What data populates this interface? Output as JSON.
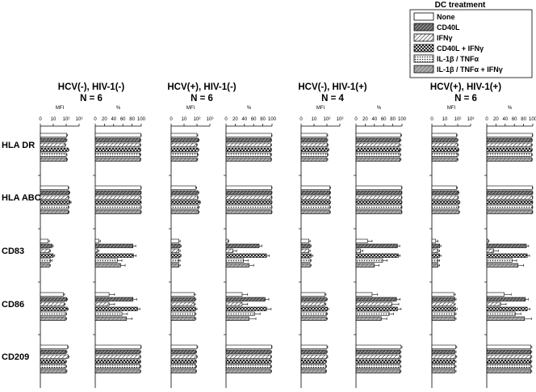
{
  "legend": {
    "title": "DC treatment",
    "entries": [
      {
        "label": "None",
        "pattern": "none"
      },
      {
        "label": "CD40L",
        "pattern": "dense-hatch"
      },
      {
        "label": "IFNγ",
        "pattern": "diag-hatch"
      },
      {
        "label": "CD40L + IFNγ",
        "pattern": "crosshatch"
      },
      {
        "label": "IL-1β / TNFα",
        "pattern": "dotted"
      },
      {
        "label": "IL-1β / TNFα + IFNγ",
        "pattern": "gray-hatch"
      }
    ]
  },
  "groups": [
    {
      "title": "HCV(-), HIV-1(-)",
      "n": "N = 6"
    },
    {
      "title": "HCV(+), HIV-1(-)",
      "n": "N = 6"
    },
    {
      "title": "HCV(-), HIV-1(+)",
      "n": "N = 4"
    },
    {
      "title": "HCV(+), HIV-1(+)",
      "n": "N = 6"
    }
  ],
  "markers": [
    "HLA DR",
    "HLA ABC",
    "CD83",
    "CD86",
    "CD209"
  ],
  "axes": {
    "mfi": {
      "label": "MFI",
      "ticks": [
        "0",
        "10",
        "10²",
        "10³"
      ],
      "scale": "log",
      "range": [
        1,
        1000
      ]
    },
    "pct": {
      "label": "%",
      "ticks": [
        "0",
        "20",
        "40",
        "60",
        "80",
        "100"
      ],
      "range": [
        0,
        100
      ]
    }
  },
  "chart_data": {
    "type": "bar",
    "orientation": "horizontal",
    "series": [
      "None",
      "CD40L",
      "IFNγ",
      "CD40L + IFNγ",
      "IL-1β / TNFα",
      "IL-1β / TNFα + IFNγ"
    ],
    "note_units": "MFI values in fluorescence units (log axis 1–1000); % values in percent (0–100). err = error bar length in same units.",
    "mfi": {
      "HLA DR": [
        [
          110,
          100,
          80,
          140,
          100,
          110
        ],
        [
          100,
          130,
          90,
          120,
          110,
          100
        ],
        [
          100,
          100,
          110,
          120,
          110,
          100
        ],
        [
          80,
          90,
          90,
          110,
          100,
          90
        ]
      ],
      "HLA ABC": [
        [
          140,
          170,
          150,
          200,
          140,
          150
        ],
        [
          80,
          120,
          110,
          160,
          130,
          130
        ],
        [
          170,
          170,
          160,
          170,
          160,
          160
        ],
        [
          80,
          110,
          100,
          130,
          110,
          120
        ]
      ],
      "CD83": [
        [
          4,
          8,
          5,
          10,
          6,
          5
        ],
        [
          4,
          5,
          4,
          5,
          4,
          4
        ],
        [
          4,
          5,
          4,
          6,
          5,
          5
        ],
        [
          2,
          4,
          3,
          4,
          3,
          3
        ]
      ],
      "CD86": [
        [
          60,
          110,
          70,
          120,
          90,
          90
        ],
        [
          60,
          70,
          60,
          80,
          70,
          70
        ],
        [
          70,
          90,
          70,
          110,
          90,
          90
        ],
        [
          50,
          60,
          50,
          70,
          60,
          60
        ]
      ],
      "CD209": [
        [
          130,
          100,
          140,
          90,
          90,
          100
        ],
        [
          100,
          80,
          90,
          80,
          80,
          80
        ],
        [
          100,
          90,
          100,
          80,
          80,
          80
        ],
        [
          70,
          60,
          70,
          60,
          60,
          60
        ]
      ]
    },
    "mfi_err": {
      "HLA DR": [
        [
          15,
          15,
          10,
          20,
          15,
          15
        ],
        [
          15,
          20,
          15,
          20,
          15,
          15
        ],
        [
          15,
          15,
          15,
          20,
          15,
          15
        ],
        [
          10,
          15,
          15,
          15,
          15,
          15
        ]
      ],
      "HLA ABC": [
        [
          20,
          25,
          20,
          40,
          20,
          20
        ],
        [
          15,
          20,
          15,
          25,
          20,
          20
        ],
        [
          25,
          25,
          25,
          25,
          25,
          25
        ],
        [
          15,
          20,
          15,
          20,
          20,
          20
        ]
      ],
      "CD83": [
        [
          1,
          2,
          1,
          3,
          2,
          1
        ],
        [
          1,
          1,
          1,
          1,
          1,
          1
        ],
        [
          1,
          1,
          1,
          2,
          1,
          1
        ],
        [
          1,
          1,
          1,
          1,
          1,
          1
        ]
      ],
      "CD86": [
        [
          15,
          20,
          15,
          25,
          20,
          20
        ],
        [
          15,
          15,
          15,
          20,
          15,
          15
        ],
        [
          15,
          20,
          15,
          25,
          20,
          20
        ],
        [
          15,
          15,
          15,
          20,
          15,
          15
        ]
      ],
      "CD209": [
        [
          20,
          15,
          25,
          15,
          15,
          15
        ],
        [
          15,
          15,
          15,
          15,
          15,
          15
        ],
        [
          15,
          15,
          15,
          15,
          15,
          15
        ],
        [
          15,
          15,
          15,
          15,
          15,
          15
        ]
      ]
    },
    "pct": {
      "HLA DR": [
        [
          99,
          98,
          97,
          98,
          97,
          98
        ],
        [
          99,
          98,
          97,
          98,
          97,
          98
        ],
        [
          97,
          96,
          94,
          96,
          95,
          96
        ],
        [
          99,
          98,
          97,
          98,
          97,
          98
        ]
      ],
      "HLA ABC": [
        [
          99,
          99,
          99,
          99,
          99,
          99
        ],
        [
          99,
          99,
          99,
          99,
          99,
          99
        ],
        [
          99,
          99,
          99,
          99,
          99,
          99
        ],
        [
          99,
          99,
          99,
          99,
          99,
          99
        ]
      ],
      "CD83": [
        [
          8,
          82,
          5,
          83,
          48,
          55
        ],
        [
          4,
          72,
          15,
          88,
          38,
          50
        ],
        [
          25,
          90,
          10,
          92,
          58,
          40
        ],
        [
          3,
          86,
          15,
          88,
          55,
          68
        ]
      ],
      "CD86": [
        [
          30,
          82,
          30,
          92,
          58,
          68
        ],
        [
          35,
          85,
          35,
          88,
          62,
          50
        ],
        [
          35,
          88,
          78,
          90,
          72,
          55
        ],
        [
          38,
          84,
          30,
          88,
          62,
          82
        ]
      ],
      "CD209": [
        [
          99,
          97,
          97,
          97,
          97,
          97
        ],
        [
          99,
          97,
          97,
          97,
          97,
          97
        ],
        [
          98,
          96,
          96,
          96,
          96,
          96
        ],
        [
          96,
          96,
          96,
          96,
          96,
          96
        ]
      ]
    },
    "pct_err": {
      "HLA DR": [
        [
          1,
          1,
          2,
          1,
          2,
          1
        ],
        [
          1,
          1,
          2,
          1,
          2,
          1
        ],
        [
          2,
          2,
          3,
          2,
          2,
          2
        ],
        [
          1,
          1,
          2,
          1,
          2,
          1
        ]
      ],
      "HLA ABC": [
        [
          1,
          1,
          1,
          1,
          1,
          1
        ],
        [
          1,
          1,
          1,
          1,
          1,
          1
        ],
        [
          1,
          1,
          1,
          1,
          1,
          1
        ],
        [
          1,
          1,
          1,
          1,
          1,
          1
        ]
      ],
      "CD83": [
        [
          3,
          6,
          3,
          6,
          10,
          10
        ],
        [
          2,
          6,
          8,
          6,
          10,
          10
        ],
        [
          10,
          5,
          5,
          4,
          10,
          10
        ],
        [
          2,
          5,
          10,
          5,
          10,
          12
        ]
      ],
      "CD86": [
        [
          12,
          8,
          12,
          5,
          12,
          12
        ],
        [
          12,
          8,
          12,
          10,
          12,
          15
        ],
        [
          12,
          8,
          15,
          8,
          10,
          12
        ],
        [
          15,
          6,
          12,
          6,
          12,
          15
        ]
      ],
      "CD209": [
        [
          1,
          2,
          2,
          2,
          2,
          2
        ],
        [
          1,
          2,
          2,
          2,
          2,
          2
        ],
        [
          2,
          2,
          2,
          2,
          2,
          2
        ],
        [
          2,
          2,
          2,
          2,
          2,
          2
        ]
      ]
    }
  }
}
